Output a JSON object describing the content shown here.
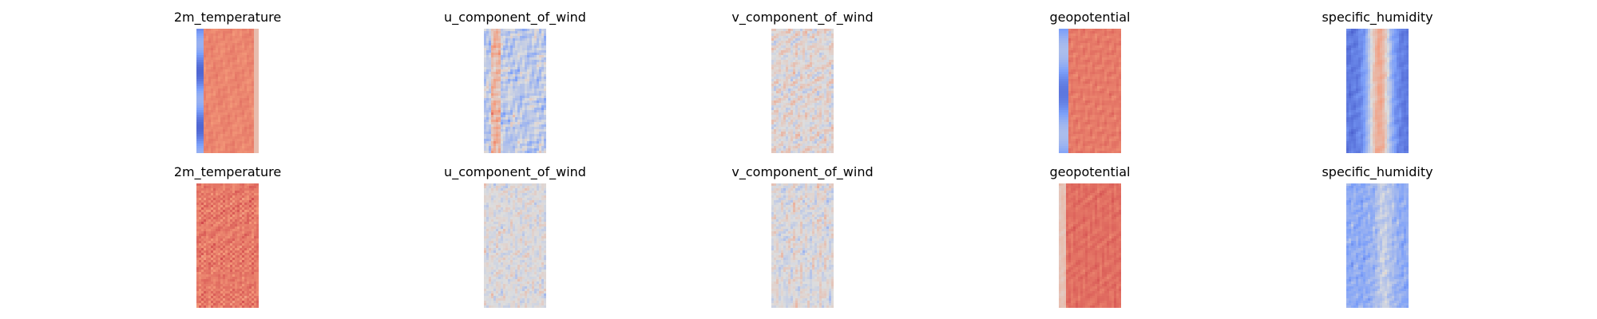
{
  "chart_data": [
    {
      "type": "heatmap",
      "title": "2m_temperature",
      "colormap": "coolwarm",
      "style": "temp_a"
    },
    {
      "type": "heatmap",
      "title": "u_component_of_wind",
      "colormap": "coolwarm",
      "style": "uwind_a"
    },
    {
      "type": "heatmap",
      "title": "v_component_of_wind",
      "colormap": "coolwarm",
      "style": "vwind_a"
    },
    {
      "type": "heatmap",
      "title": "geopotential",
      "colormap": "coolwarm",
      "style": "geo_a"
    },
    {
      "type": "heatmap",
      "title": "specific_humidity",
      "colormap": "coolwarm",
      "style": "hum_a"
    },
    {
      "type": "heatmap",
      "title": "2m_temperature",
      "colormap": "coolwarm",
      "style": "temp_b"
    },
    {
      "type": "heatmap",
      "title": "u_component_of_wind",
      "colormap": "coolwarm",
      "style": "uwind_b"
    },
    {
      "type": "heatmap",
      "title": "v_component_of_wind",
      "colormap": "coolwarm",
      "style": "vwind_b"
    },
    {
      "type": "heatmap",
      "title": "geopotential",
      "colormap": "coolwarm",
      "style": "geo_b"
    },
    {
      "type": "heatmap",
      "title": "specific_humidity",
      "colormap": "coolwarm",
      "style": "hum_b"
    }
  ]
}
